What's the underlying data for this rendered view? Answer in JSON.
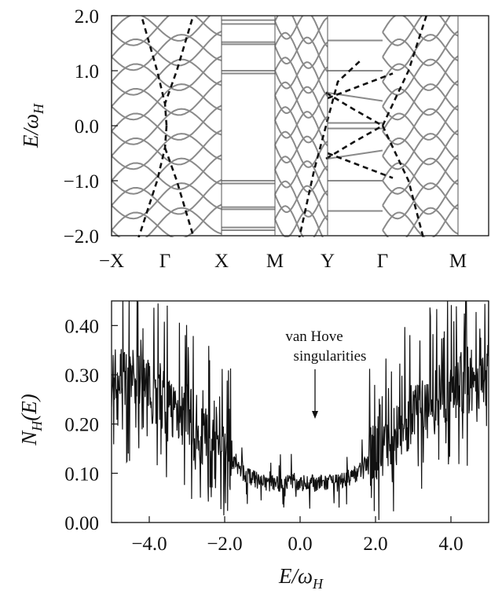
{
  "chart_data": [
    {
      "type": "line",
      "ylabel": "E/ω_H",
      "ylabel_main": "E/ω",
      "ylabel_sub": "H",
      "ylim": [
        -2.0,
        2.0
      ],
      "yticks": [
        2.0,
        1.0,
        0.0,
        -1.0,
        -2.0
      ],
      "ytick_labels": [
        "2.0",
        "1.0",
        "0.0",
        "−1.0",
        "−2.0"
      ],
      "x_symmetry_points": [
        "−X",
        "Γ",
        "X",
        "M",
        "Y",
        "Γ",
        "M"
      ],
      "grid": false,
      "series": [
        {
          "style": "solid-gray",
          "values": "Landau-level band structure (Hofstadter-like bands)"
        },
        {
          "style": "dashed-black",
          "values": "zero-field dispersion"
        }
      ],
      "colors": {
        "bands": "#8a8a8a",
        "dashed": "#111111"
      }
    },
    {
      "type": "line",
      "ylabel_main": "N",
      "ylabel_sub": "H",
      "ylabel_tail": "(E)",
      "xlabel_main": "E/ω",
      "xlabel_sub": "H",
      "xlim": [
        -5.0,
        5.0
      ],
      "ylim": [
        0.0,
        0.45
      ],
      "xticks": [
        -4.0,
        -2.0,
        0.0,
        2.0,
        4.0
      ],
      "xtick_labels": [
        "−4.0",
        "−2.0",
        "0.0",
        "2.0",
        "4.0"
      ],
      "yticks": [
        0.0,
        0.1,
        0.2,
        0.3,
        0.4
      ],
      "ytick_labels": [
        "0.00",
        "0.10",
        "0.20",
        "0.30",
        "0.40"
      ],
      "annotation": {
        "line1": "van Hove",
        "line2": "singularities",
        "points_to_x": 0.35,
        "points_to_y": 0.19
      },
      "baseline": {
        "x": [
          -5.0,
          -4.5,
          -4.0,
          -3.5,
          -3.0,
          -2.5,
          -2.0,
          -1.5,
          -1.0,
          -0.5,
          0.0,
          0.5,
          1.0,
          1.5,
          2.0,
          2.5,
          3.0,
          3.5,
          4.0,
          4.5,
          5.0
        ],
        "y": [
          0.3,
          0.29,
          0.27,
          0.24,
          0.22,
          0.17,
          0.14,
          0.1,
          0.08,
          0.08,
          0.08,
          0.08,
          0.08,
          0.1,
          0.14,
          0.17,
          0.22,
          0.24,
          0.27,
          0.29,
          0.3
        ]
      },
      "colors": {
        "line": "#111111"
      }
    }
  ]
}
